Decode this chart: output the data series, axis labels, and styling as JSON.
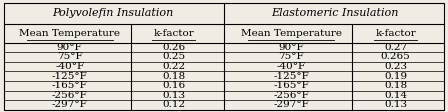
{
  "title_left": "Polyvolefin Insulation",
  "title_right": "Elastomeric Insulation",
  "col_headers": [
    "Mean Temperature",
    "k-factor",
    "Mean Temperature",
    "k-factor"
  ],
  "rows": [
    [
      "90°F",
      "0.26",
      "90°F",
      "0.27"
    ],
    [
      "75°F",
      "0.25",
      "75°F",
      "0.265"
    ],
    [
      "-40°F",
      "0.22",
      "-40°F",
      "0.23"
    ],
    [
      "-125°F",
      "0.18",
      "-125°F",
      "0.19"
    ],
    [
      "-165°F",
      "0.16",
      "-165°F",
      "0.18"
    ],
    [
      "-256°F",
      "0.13",
      "-256°F",
      "0.14"
    ],
    [
      "-297°F",
      "0.12",
      "-297°F",
      "0.13"
    ]
  ],
  "bg_color": "#f0ece4",
  "font_size": 7.5,
  "header_font_size": 8.0
}
